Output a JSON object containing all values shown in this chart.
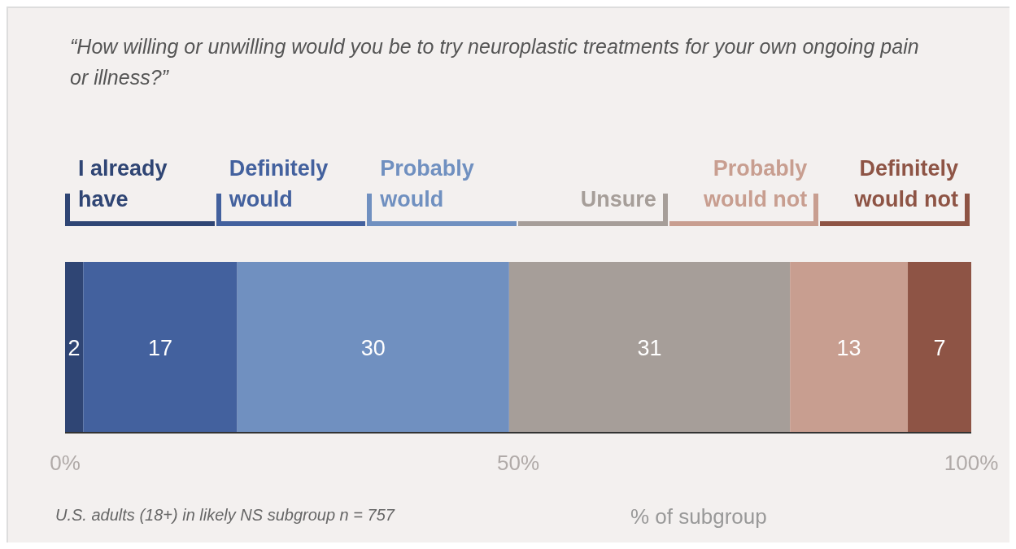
{
  "chart_data": {
    "type": "bar",
    "title": "“How willing or unwilling would you be to try neuroplastic treatments for your own ongoing pain or illness?”",
    "orientation": "horizontal",
    "stacked": true,
    "categories": [
      null
    ],
    "series": [
      {
        "name": "I already have",
        "color": "#2f4574",
        "values": [
          2
        ]
      },
      {
        "name": "Definitely would",
        "color": "#43619e",
        "values": [
          17
        ]
      },
      {
        "name": "Probably would",
        "color": "#7090c0",
        "values": [
          30
        ]
      },
      {
        "name": "Unsure",
        "color": "#a69e99",
        "values": [
          31
        ]
      },
      {
        "name": "Probably would not",
        "color": "#c89e90",
        "values": [
          13
        ]
      },
      {
        "name": "Definitely would not",
        "color": "#8e5445",
        "values": [
          7
        ]
      }
    ],
    "xlim": [
      0,
      100
    ],
    "xticks": [
      {
        "value": 0,
        "label": "0%"
      },
      {
        "value": 50,
        "label": "50%"
      },
      {
        "value": 100,
        "label": "100%"
      }
    ],
    "xlabel": "% of subgroup",
    "annotations": [
      "U.S. adults (18+) in likely NS subgroup n = 757"
    ],
    "data_labels": true,
    "legend": "top"
  }
}
